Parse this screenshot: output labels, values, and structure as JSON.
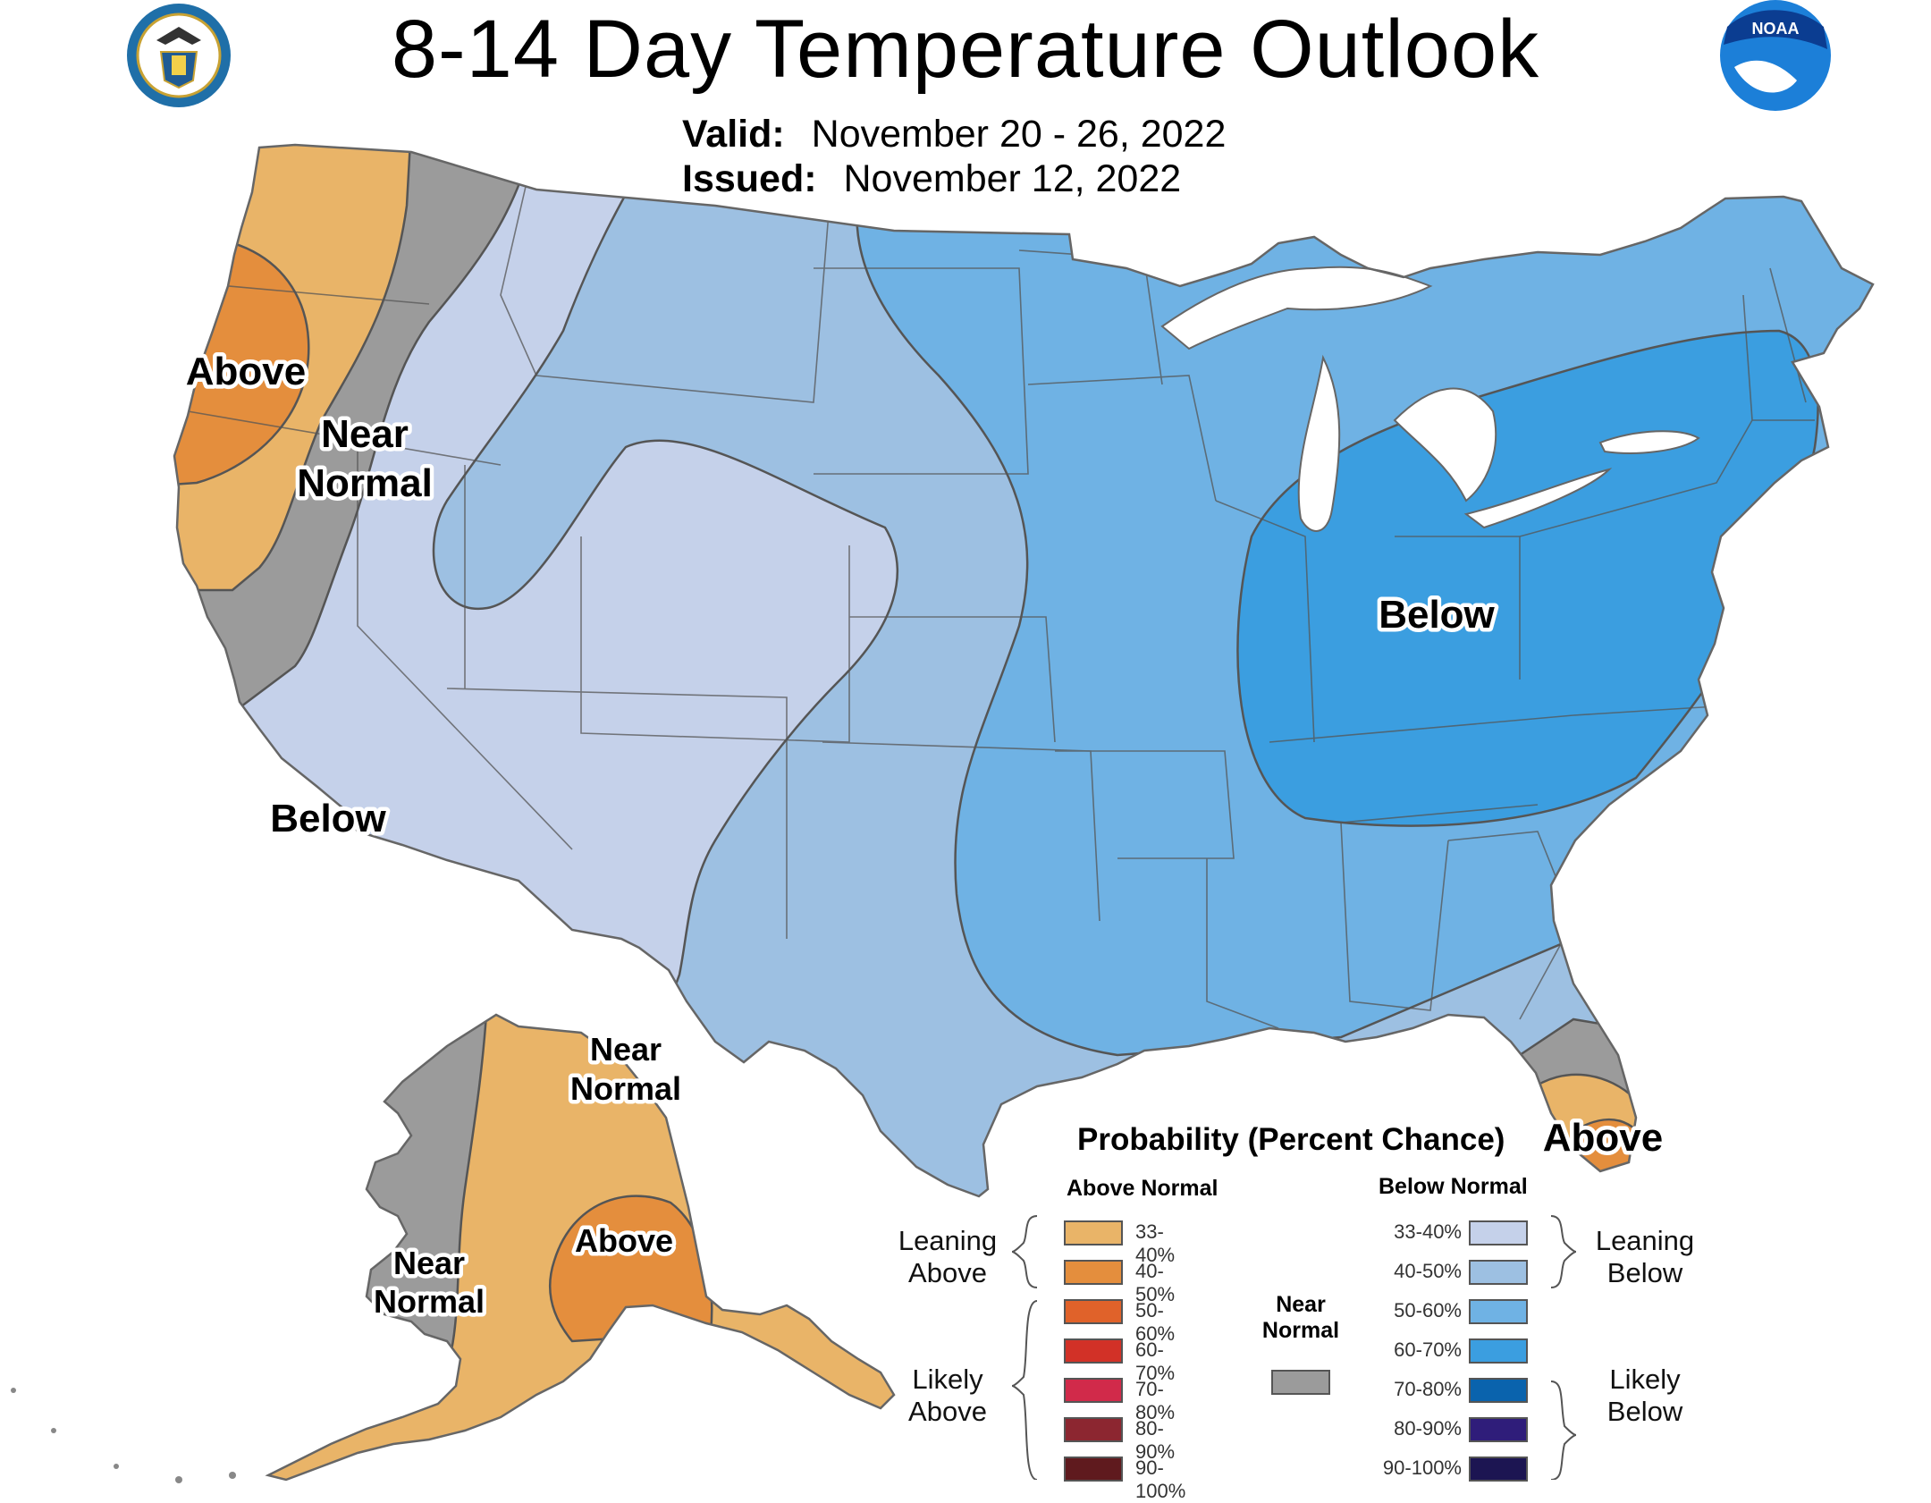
{
  "title": "8-14 Day Temperature Outlook",
  "valid_label": "Valid:",
  "valid_value": "November 20 - 26, 2022",
  "issued_label": "Issued:",
  "issued_value": "November 12, 2022",
  "logos": {
    "left": "department-of-commerce-seal",
    "right": "noaa-logo",
    "noaa_text": "NOAA"
  },
  "region_labels": {
    "west_above": "Above",
    "west_near": "Near",
    "west_normal": "Normal",
    "sw_below": "Below",
    "east_below": "Below",
    "fl_above": "Above",
    "ak_near_ne_1": "Near",
    "ak_near_ne_2": "Normal",
    "ak_near_w_1": "Near",
    "ak_near_w_2": "Normal",
    "ak_above": "Above"
  },
  "categories": {
    "above_leaning_33_40": "#e9b468",
    "above_leaning_40_50": "#e48e3d",
    "near_normal": "#9b9b9b",
    "below_leaning_33_40": "#c5d1ea",
    "below_leaning_40_50": "#9dc0e2",
    "below_likely_50_60": "#6fb2e4",
    "below_likely_60_70": "#3b9ee0"
  },
  "legend": {
    "title": "Probability (Percent Chance)",
    "above_header": "Above Normal",
    "below_header": "Below Normal",
    "near_header_1": "Near",
    "near_header_2": "Normal",
    "leaning_above_1": "Leaning",
    "leaning_above_2": "Above",
    "likely_above_1": "Likely",
    "likely_above_2": "Above",
    "leaning_below_1": "Leaning",
    "leaning_below_2": "Below",
    "likely_below_1": "Likely",
    "likely_below_2": "Below",
    "near_color": "#9b9b9b",
    "above": [
      {
        "range": "33-40%",
        "color": "#e9b468"
      },
      {
        "range": "40-50%",
        "color": "#e48e3d"
      },
      {
        "range": "50-60%",
        "color": "#e0622a"
      },
      {
        "range": "60-70%",
        "color": "#d23127"
      },
      {
        "range": "70-80%",
        "color": "#d12a4a"
      },
      {
        "range": "80-90%",
        "color": "#8c2630"
      },
      {
        "range": "90-100%",
        "color": "#5f1a1e"
      }
    ],
    "below": [
      {
        "range": "33-40%",
        "color": "#c5d1ea"
      },
      {
        "range": "40-50%",
        "color": "#9dc0e2"
      },
      {
        "range": "50-60%",
        "color": "#6fb2e4"
      },
      {
        "range": "60-70%",
        "color": "#3b9ee0"
      },
      {
        "range": "70-80%",
        "color": "#0a63ad"
      },
      {
        "range": "80-90%",
        "color": "#2f1d7a"
      },
      {
        "range": "90-100%",
        "color": "#1c1552"
      }
    ]
  }
}
